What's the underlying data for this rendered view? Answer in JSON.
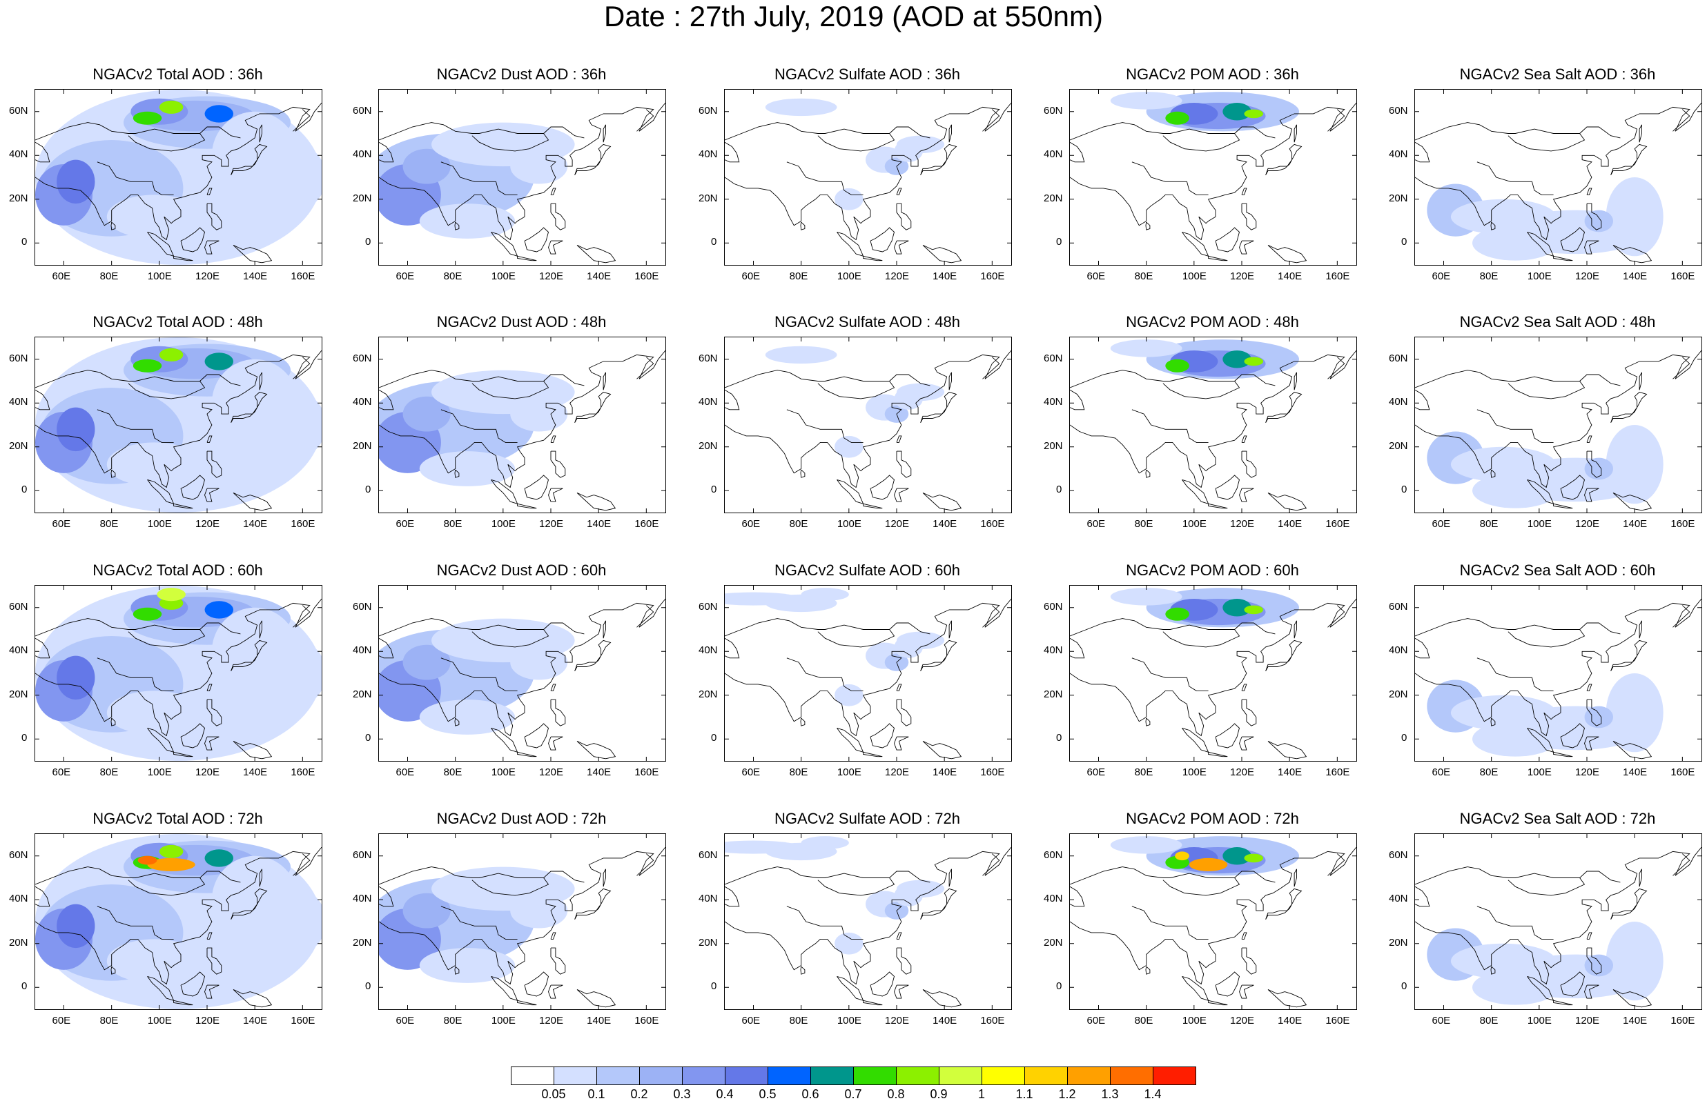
{
  "title": "Date : 27th July, 2019 (AOD at 550nm)",
  "axes": {
    "lon_ticks": [
      "60E",
      "80E",
      "100E",
      "120E",
      "140E",
      "160E"
    ],
    "lat_ticks": [
      "60N",
      "40N",
      "20N",
      "0"
    ],
    "lon_range": [
      48,
      168
    ],
    "lat_range": [
      -10,
      70
    ]
  },
  "panels": [
    {
      "title": "NGACv2 Total AOD : 36h",
      "variable": "Total",
      "lead": "36h"
    },
    {
      "title": "NGACv2 Dust AOD : 36h",
      "variable": "Dust",
      "lead": "36h"
    },
    {
      "title": "NGACv2 Sulfate AOD : 36h",
      "variable": "Sulfate",
      "lead": "36h"
    },
    {
      "title": "NGACv2 POM AOD : 36h",
      "variable": "POM",
      "lead": "36h"
    },
    {
      "title": "NGACv2 Sea Salt AOD : 36h",
      "variable": "SeaSalt",
      "lead": "36h"
    },
    {
      "title": "NGACv2 Total AOD : 48h",
      "variable": "Total",
      "lead": "48h"
    },
    {
      "title": "NGACv2 Dust AOD : 48h",
      "variable": "Dust",
      "lead": "48h"
    },
    {
      "title": "NGACv2 Sulfate AOD : 48h",
      "variable": "Sulfate",
      "lead": "48h"
    },
    {
      "title": "NGACv2 POM AOD : 48h",
      "variable": "POM",
      "lead": "48h"
    },
    {
      "title": "NGACv2 Sea Salt AOD : 48h",
      "variable": "SeaSalt",
      "lead": "48h"
    },
    {
      "title": "NGACv2 Total AOD : 60h",
      "variable": "Total",
      "lead": "60h"
    },
    {
      "title": "NGACv2 Dust AOD : 60h",
      "variable": "Dust",
      "lead": "60h"
    },
    {
      "title": "NGACv2 Sulfate AOD : 60h",
      "variable": "Sulfate",
      "lead": "60h"
    },
    {
      "title": "NGACv2 POM AOD : 60h",
      "variable": "POM",
      "lead": "60h"
    },
    {
      "title": "NGACv2 Sea Salt AOD : 60h",
      "variable": "SeaSalt",
      "lead": "60h"
    },
    {
      "title": "NGACv2 Total AOD : 72h",
      "variable": "Total",
      "lead": "72h"
    },
    {
      "title": "NGACv2 Dust AOD : 72h",
      "variable": "Dust",
      "lead": "72h"
    },
    {
      "title": "NGACv2 Sulfate AOD : 72h",
      "variable": "Sulfate",
      "lead": "72h"
    },
    {
      "title": "NGACv2 POM AOD : 72h",
      "variable": "POM",
      "lead": "72h"
    },
    {
      "title": "NGACv2 Sea Salt  AOD : 72h",
      "variable": "SeaSalt",
      "lead": "72h"
    }
  ],
  "colorbar": {
    "labels": [
      "0.05",
      "0.1",
      "0.2",
      "0.3",
      "0.4",
      "0.5",
      "0.6",
      "0.7",
      "0.8",
      "0.9",
      "1",
      "1.1",
      "1.2",
      "1.3",
      "1.4"
    ],
    "colors": [
      "#ffffff",
      "#d4e0ff",
      "#b4c8fa",
      "#9cb2f5",
      "#8296f0",
      "#6478e8",
      "#0064ff",
      "#00968c",
      "#32dc00",
      "#8cf000",
      "#d2ff3c",
      "#ffff00",
      "#ffd200",
      "#ffa000",
      "#ff6e00",
      "#ff1e00"
    ]
  }
}
